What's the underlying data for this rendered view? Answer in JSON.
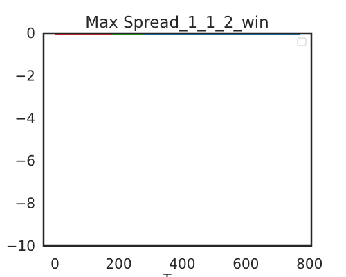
{
  "chart_data": {
    "type": "line",
    "title": "Max Spread_1_1_2_win",
    "xlabel": "T",
    "ylabel": "",
    "xlim": [
      -36,
      806
    ],
    "ylim": [
      -10,
      0
    ],
    "x_ticks": [
      0,
      200,
      400,
      600,
      800
    ],
    "y_ticks": [
      0,
      -2,
      -4,
      -6,
      -8,
      -10
    ],
    "x_tick_labels": [
      "0",
      "200",
      "400",
      "600",
      "800"
    ],
    "y_tick_labels": [
      "0",
      "−2",
      "−4",
      "−6",
      "−8",
      "−10"
    ],
    "grid": false,
    "legend": {
      "placement": "upper right",
      "entries": []
    },
    "series": [
      {
        "color": "#d62728",
        "x": [
          0,
          180
        ],
        "y": [
          0,
          0
        ]
      },
      {
        "color": "#2ca02c",
        "x": [
          180,
          280
        ],
        "y": [
          0,
          0
        ]
      },
      {
        "color": "#1f77b4",
        "x": [
          280,
          770
        ],
        "y": [
          0,
          0
        ]
      }
    ]
  },
  "colors": {
    "axes": "#262626",
    "background": "#ffffff",
    "legend_border": "#cccccc"
  }
}
